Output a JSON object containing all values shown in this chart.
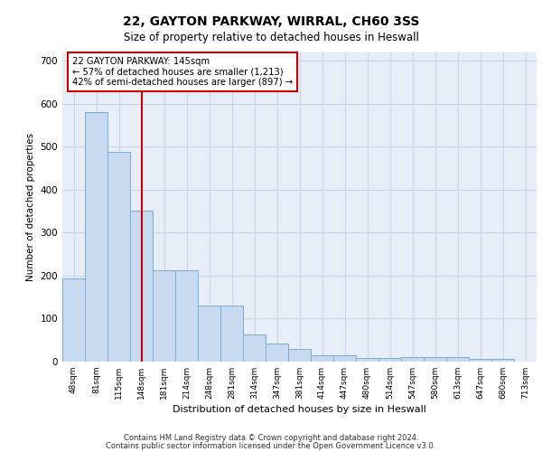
{
  "title1": "22, GAYTON PARKWAY, WIRRAL, CH60 3SS",
  "title2": "Size of property relative to detached houses in Heswall",
  "xlabel": "Distribution of detached houses by size in Heswall",
  "ylabel": "Number of detached properties",
  "categories": [
    "48sqm",
    "81sqm",
    "115sqm",
    "148sqm",
    "181sqm",
    "214sqm",
    "248sqm",
    "281sqm",
    "314sqm",
    "347sqm",
    "381sqm",
    "414sqm",
    "447sqm",
    "480sqm",
    "514sqm",
    "547sqm",
    "580sqm",
    "613sqm",
    "647sqm",
    "680sqm",
    "713sqm"
  ],
  "values": [
    193,
    580,
    487,
    352,
    213,
    213,
    130,
    130,
    63,
    42,
    30,
    15,
    15,
    8,
    8,
    10,
    10,
    10,
    6,
    6,
    0
  ],
  "bar_color": "#c8daf0",
  "bar_edge_color": "#7aadd6",
  "highlight_idx": 3,
  "highlight_color": "#cc0000",
  "annotation_text": "22 GAYTON PARKWAY: 145sqm\n← 57% of detached houses are smaller (1,213)\n42% of semi-detached houses are larger (897) →",
  "annotation_box_color": "#ffffff",
  "annotation_box_edge": "#cc0000",
  "grid_color": "#ccd5e8",
  "bg_color": "#e8eef8",
  "footer1": "Contains HM Land Registry data © Crown copyright and database right 2024.",
  "footer2": "Contains public sector information licensed under the Open Government Licence v3.0.",
  "ylim": [
    0,
    720
  ],
  "yticks": [
    0,
    100,
    200,
    300,
    400,
    500,
    600,
    700
  ]
}
